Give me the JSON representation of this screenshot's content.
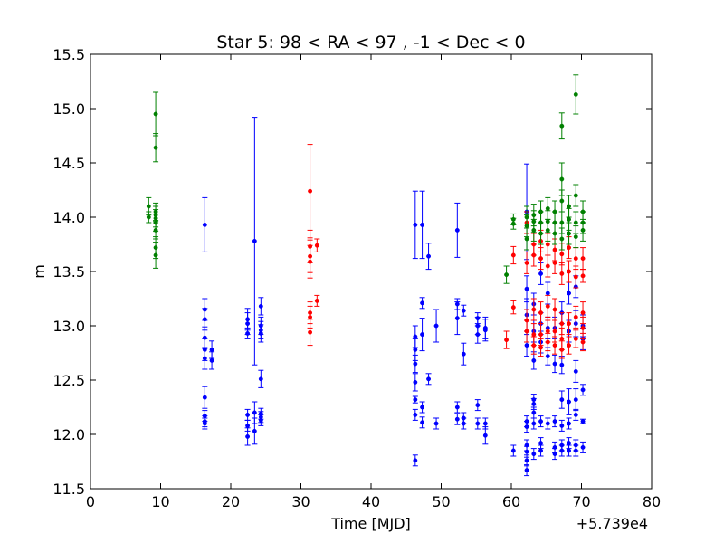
{
  "chart_data": {
    "type": "scatter",
    "title": "Star 5: 98 < RA < 97 , -1 < Dec < 0",
    "xlabel": "Time [MJD]",
    "ylabel": "m",
    "x_offset_label": "+5.739e4",
    "xlim": [
      0,
      80
    ],
    "ylim": [
      11.5,
      15.5
    ],
    "xticks": [
      "0",
      "10",
      "20",
      "30",
      "40",
      "50",
      "60",
      "70",
      "80"
    ],
    "yticks": [
      "11.5",
      "12.0",
      "12.5",
      "13.0",
      "13.5",
      "14.0",
      "14.5",
      "15.0",
      "15.5"
    ],
    "grid": false,
    "series": [
      {
        "color": "#0000ff",
        "points": [
          [
            16.3,
            13.93,
            0.25
          ],
          [
            16.3,
            13.15,
            0.1
          ],
          [
            16.3,
            13.06,
            0.1
          ],
          [
            16.3,
            12.89,
            0.1
          ],
          [
            16.3,
            12.78,
            0.1
          ],
          [
            16.3,
            12.7,
            0.1
          ],
          [
            16.3,
            12.34,
            0.1
          ],
          [
            16.3,
            12.17,
            0.05
          ],
          [
            16.3,
            12.12,
            0.05
          ],
          [
            16.3,
            12.1,
            0.05
          ],
          [
            17.3,
            12.78,
            0.08
          ],
          [
            17.3,
            12.68,
            0.08
          ],
          [
            22.4,
            13.06,
            0.1
          ],
          [
            22.4,
            13.02,
            0.1
          ],
          [
            22.4,
            12.93,
            0.05
          ],
          [
            22.4,
            12.18,
            0.05
          ],
          [
            22.4,
            12.08,
            0.05
          ],
          [
            22.4,
            11.98,
            0.08
          ],
          [
            23.4,
            13.78,
            1.14
          ],
          [
            23.4,
            12.2,
            0.1
          ],
          [
            23.4,
            12.03,
            0.12
          ],
          [
            24.3,
            13.18,
            0.08
          ],
          [
            24.3,
            13.0,
            0.08
          ],
          [
            24.3,
            12.96,
            0.08
          ],
          [
            24.3,
            12.93,
            0.08
          ],
          [
            24.3,
            12.51,
            0.08
          ],
          [
            24.3,
            12.19,
            0.05
          ],
          [
            24.3,
            12.16,
            0.05
          ],
          [
            24.3,
            12.13,
            0.05
          ],
          [
            46.3,
            13.93,
            0.31
          ],
          [
            46.3,
            12.9,
            0.1
          ],
          [
            46.3,
            12.78,
            0.1
          ],
          [
            46.3,
            12.65,
            0.08
          ],
          [
            46.3,
            12.48,
            0.08
          ],
          [
            46.3,
            12.32,
            0.03
          ],
          [
            46.3,
            12.18,
            0.05
          ],
          [
            46.3,
            11.76,
            0.05
          ],
          [
            47.3,
            13.93,
            0.31
          ],
          [
            47.3,
            13.21,
            0.05
          ],
          [
            47.3,
            12.92,
            0.15
          ],
          [
            47.3,
            12.25,
            0.05
          ],
          [
            47.3,
            12.11,
            0.05
          ],
          [
            48.2,
            13.64,
            0.12
          ],
          [
            48.2,
            12.51,
            0.05
          ],
          [
            49.3,
            13.0,
            0.15
          ],
          [
            49.3,
            12.1,
            0.05
          ],
          [
            52.3,
            13.88,
            0.25
          ],
          [
            52.3,
            13.2,
            0.05
          ],
          [
            52.3,
            13.07,
            0.15
          ],
          [
            52.3,
            12.25,
            0.05
          ],
          [
            52.3,
            12.14,
            0.05
          ],
          [
            53.2,
            13.14,
            0.05
          ],
          [
            53.2,
            12.74,
            0.1
          ],
          [
            53.2,
            12.15,
            0.05
          ],
          [
            53.2,
            12.1,
            0.05
          ],
          [
            55.2,
            13.07,
            0.05
          ],
          [
            55.2,
            13.0,
            0.08
          ],
          [
            55.2,
            12.92,
            0.08
          ],
          [
            55.2,
            12.27,
            0.05
          ],
          [
            55.2,
            12.1,
            0.05
          ],
          [
            56.3,
            12.98,
            0.1
          ],
          [
            56.3,
            12.96,
            0.1
          ],
          [
            56.3,
            12.1,
            0.05
          ],
          [
            56.3,
            11.99,
            0.08
          ],
          [
            60.3,
            11.85,
            0.05
          ],
          [
            62.2,
            14.05,
            0.44
          ],
          [
            62.2,
            13.34,
            0.12
          ],
          [
            62.2,
            13.1,
            0.15
          ],
          [
            62.2,
            12.95,
            0.1
          ],
          [
            62.2,
            12.82,
            0.1
          ],
          [
            62.2,
            12.12,
            0.05
          ],
          [
            62.2,
            12.07,
            0.05
          ],
          [
            62.2,
            11.9,
            0.05
          ],
          [
            62.2,
            11.84,
            0.05
          ],
          [
            62.2,
            11.76,
            0.05
          ],
          [
            62.2,
            11.67,
            0.05
          ],
          [
            63.2,
            13.2,
            0.1
          ],
          [
            63.2,
            12.95,
            0.1
          ],
          [
            63.2,
            12.68,
            0.08
          ],
          [
            63.2,
            12.32,
            0.05
          ],
          [
            63.2,
            12.28,
            0.05
          ],
          [
            63.2,
            12.2,
            0.05
          ],
          [
            63.2,
            12.1,
            0.05
          ],
          [
            63.2,
            11.82,
            0.05
          ],
          [
            64.2,
            13.48,
            0.1
          ],
          [
            64.2,
            13.02,
            0.1
          ],
          [
            64.2,
            12.85,
            0.1
          ],
          [
            64.2,
            12.12,
            0.05
          ],
          [
            64.2,
            11.92,
            0.05
          ],
          [
            64.2,
            11.85,
            0.05
          ],
          [
            65.2,
            13.3,
            0.1
          ],
          [
            65.2,
            12.98,
            0.1
          ],
          [
            65.2,
            12.72,
            0.08
          ],
          [
            65.2,
            12.1,
            0.05
          ],
          [
            66.2,
            12.98,
            0.1
          ],
          [
            66.2,
            12.65,
            0.08
          ],
          [
            66.2,
            12.12,
            0.05
          ],
          [
            66.2,
            11.88,
            0.05
          ],
          [
            66.2,
            11.82,
            0.05
          ],
          [
            67.2,
            13.12,
            0.1
          ],
          [
            67.2,
            12.64,
            0.08
          ],
          [
            67.2,
            12.32,
            0.08
          ],
          [
            67.2,
            12.08,
            0.05
          ],
          [
            67.2,
            11.9,
            0.05
          ],
          [
            67.2,
            11.85,
            0.05
          ],
          [
            68.2,
            13.3,
            0.1
          ],
          [
            68.2,
            12.95,
            0.1
          ],
          [
            68.2,
            12.3,
            0.12
          ],
          [
            68.2,
            12.1,
            0.05
          ],
          [
            68.2,
            11.92,
            0.05
          ],
          [
            68.2,
            11.85,
            0.05
          ],
          [
            69.2,
            13.36,
            0.1
          ],
          [
            69.2,
            13.02,
            0.12
          ],
          [
            69.2,
            12.58,
            0.1
          ],
          [
            69.2,
            12.32,
            0.1
          ],
          [
            69.2,
            12.18,
            0.05
          ],
          [
            69.2,
            11.9,
            0.05
          ],
          [
            69.2,
            11.85,
            0.05
          ],
          [
            70.2,
            13.0,
            0.1
          ],
          [
            70.2,
            12.88,
            0.1
          ],
          [
            70.2,
            12.41,
            0.05
          ],
          [
            70.2,
            12.12,
            0.02
          ],
          [
            70.2,
            11.88,
            0.05
          ]
        ]
      },
      {
        "color": "#ff0000",
        "points": [
          [
            31.3,
            14.24,
            0.43
          ],
          [
            31.3,
            13.73,
            0.15
          ],
          [
            31.3,
            13.64,
            0.15
          ],
          [
            31.3,
            13.59,
            0.15
          ],
          [
            31.3,
            13.12,
            0.1
          ],
          [
            31.3,
            13.08,
            0.1
          ],
          [
            31.3,
            12.94,
            0.12
          ],
          [
            32.3,
            13.74,
            0.06
          ],
          [
            32.3,
            13.23,
            0.05
          ],
          [
            59.3,
            12.87,
            0.08
          ],
          [
            60.3,
            13.65,
            0.08
          ],
          [
            60.3,
            13.17,
            0.06
          ],
          [
            62.2,
            13.95,
            0.1
          ],
          [
            62.2,
            13.58,
            0.1
          ],
          [
            62.2,
            13.05,
            0.1
          ],
          [
            62.2,
            12.95,
            0.1
          ],
          [
            63.2,
            13.75,
            0.1
          ],
          [
            63.2,
            13.65,
            0.1
          ],
          [
            63.2,
            13.15,
            0.1
          ],
          [
            63.2,
            12.92,
            0.1
          ],
          [
            63.2,
            12.82,
            0.08
          ],
          [
            64.2,
            13.78,
            0.1
          ],
          [
            64.2,
            13.62,
            0.1
          ],
          [
            64.2,
            13.12,
            0.1
          ],
          [
            64.2,
            12.92,
            0.1
          ],
          [
            64.2,
            12.8,
            0.08
          ],
          [
            65.2,
            13.75,
            0.1
          ],
          [
            65.2,
            13.55,
            0.1
          ],
          [
            65.2,
            13.18,
            0.1
          ],
          [
            65.2,
            12.95,
            0.1
          ],
          [
            65.2,
            12.85,
            0.08
          ],
          [
            66.2,
            13.7,
            0.1
          ],
          [
            66.2,
            13.58,
            0.1
          ],
          [
            66.2,
            13.15,
            0.1
          ],
          [
            66.2,
            12.95,
            0.1
          ],
          [
            66.2,
            12.82,
            0.08
          ],
          [
            67.2,
            13.66,
            0.1
          ],
          [
            67.2,
            13.48,
            0.1
          ],
          [
            67.2,
            13.02,
            0.1
          ],
          [
            67.2,
            12.88,
            0.1
          ],
          [
            67.2,
            12.78,
            0.08
          ],
          [
            68.2,
            13.72,
            0.1
          ],
          [
            68.2,
            13.5,
            0.1
          ],
          [
            68.2,
            13.02,
            0.1
          ],
          [
            68.2,
            12.82,
            0.08
          ],
          [
            69.2,
            13.62,
            0.1
          ],
          [
            69.2,
            13.45,
            0.1
          ],
          [
            69.2,
            13.08,
            0.1
          ],
          [
            69.2,
            12.88,
            0.08
          ],
          [
            70.2,
            13.62,
            0.1
          ],
          [
            70.2,
            13.46,
            0.06
          ],
          [
            70.2,
            13.12,
            0.1
          ],
          [
            70.2,
            12.98,
            0.1
          ],
          [
            70.2,
            12.85,
            0.08
          ]
        ]
      },
      {
        "color": "#008000",
        "points": [
          [
            8.3,
            14.1,
            0.08
          ],
          [
            8.3,
            14.0,
            0.05
          ],
          [
            9.3,
            14.95,
            0.2
          ],
          [
            9.3,
            14.64,
            0.13
          ],
          [
            9.3,
            14.05,
            0.08
          ],
          [
            9.3,
            14.02,
            0.08
          ],
          [
            9.3,
            13.99,
            0.08
          ],
          [
            9.3,
            13.95,
            0.08
          ],
          [
            9.3,
            13.88,
            0.08
          ],
          [
            9.3,
            13.72,
            0.1
          ],
          [
            9.3,
            13.65,
            0.12
          ],
          [
            59.3,
            13.47,
            0.08
          ],
          [
            60.3,
            13.98,
            0.05
          ],
          [
            60.3,
            13.94,
            0.05
          ],
          [
            62.2,
            14.0,
            0.1
          ],
          [
            62.2,
            13.92,
            0.1
          ],
          [
            62.2,
            13.8,
            0.1
          ],
          [
            63.2,
            14.02,
            0.1
          ],
          [
            63.2,
            13.96,
            0.1
          ],
          [
            63.2,
            13.88,
            0.1
          ],
          [
            64.2,
            14.05,
            0.1
          ],
          [
            64.2,
            13.95,
            0.1
          ],
          [
            64.2,
            13.85,
            0.1
          ],
          [
            65.2,
            14.08,
            0.1
          ],
          [
            65.2,
            13.96,
            0.1
          ],
          [
            65.2,
            13.88,
            0.1
          ],
          [
            66.2,
            14.05,
            0.1
          ],
          [
            66.2,
            13.95,
            0.1
          ],
          [
            66.2,
            13.85,
            0.1
          ],
          [
            67.2,
            14.84,
            0.12
          ],
          [
            67.2,
            14.35,
            0.15
          ],
          [
            67.2,
            14.15,
            0.1
          ],
          [
            67.2,
            13.95,
            0.1
          ],
          [
            67.2,
            13.8,
            0.1
          ],
          [
            68.2,
            14.1,
            0.1
          ],
          [
            68.2,
            13.98,
            0.1
          ],
          [
            68.2,
            13.85,
            0.1
          ],
          [
            69.2,
            15.13,
            0.18
          ],
          [
            69.2,
            14.2,
            0.1
          ],
          [
            69.2,
            13.95,
            0.1
          ],
          [
            69.2,
            13.82,
            0.1
          ],
          [
            70.2,
            14.05,
            0.1
          ],
          [
            70.2,
            13.95,
            0.1
          ],
          [
            70.2,
            13.88,
            0.1
          ]
        ]
      }
    ]
  }
}
